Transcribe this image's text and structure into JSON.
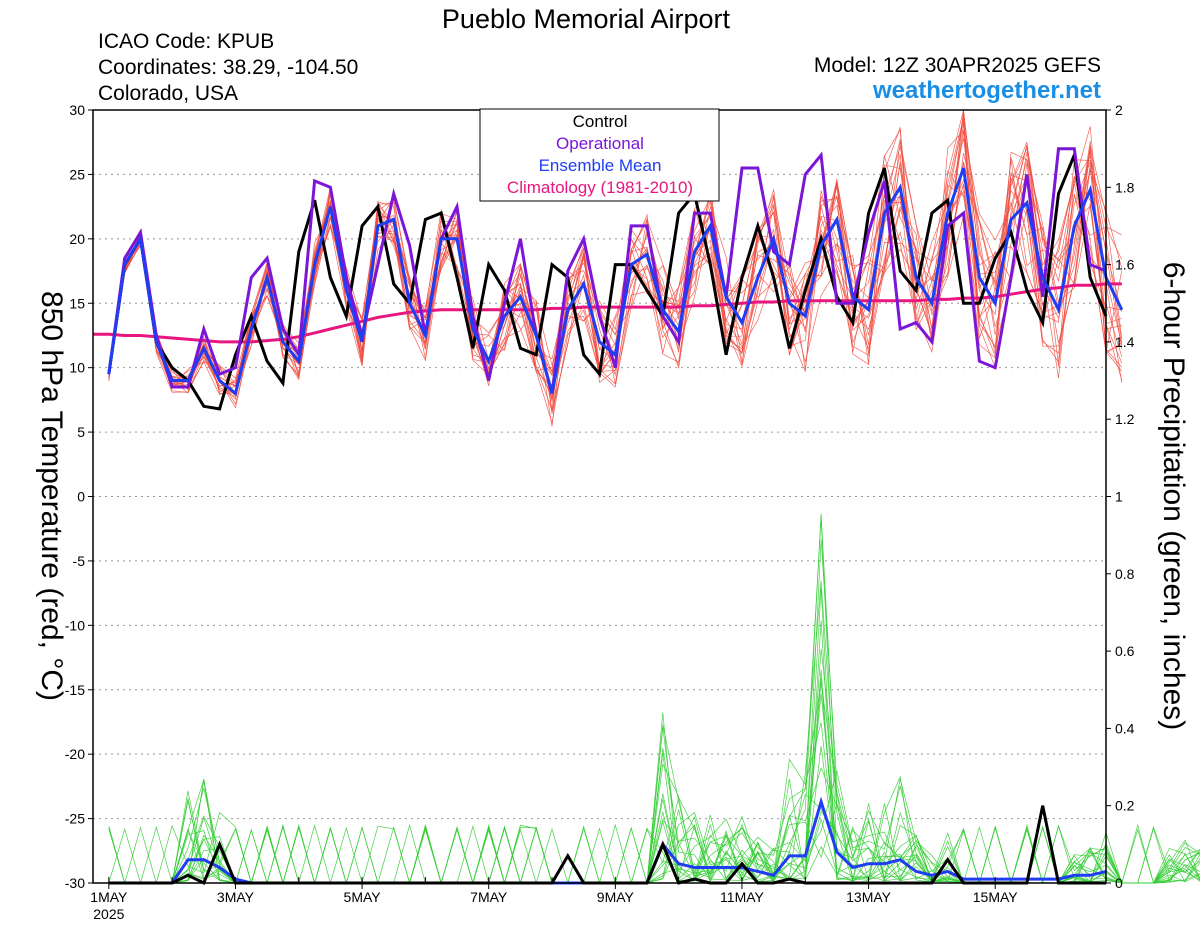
{
  "header": {
    "title": "Pueblo Memorial Airport",
    "icao": "ICAO Code: KPUB",
    "coords": "Coordinates: 38.29, -104.50",
    "region": "Colorado, USA",
    "model": "Model: 12Z 30APR2025 GEFS",
    "site": "weathertogether.net"
  },
  "colors": {
    "control": "#000000",
    "operational": "#7b16d9",
    "ensemble_mean": "#1f3df2",
    "climatology": "#e8177f",
    "members_temp": "#f04b40",
    "members_precip": "#33cc33",
    "site": "#1a8ee6"
  },
  "chart_data": {
    "type": "line",
    "title": "Pueblo Memorial Airport",
    "ylabel": "850 hPa Temperature (red, °C)",
    "y2label": "6-hour Precipitation (green, inches)",
    "ylim": [
      -30,
      30
    ],
    "y2lim": [
      0,
      2
    ],
    "yticks": [
      30,
      25,
      20,
      15,
      10,
      5,
      0,
      -5,
      -10,
      -15,
      -20,
      -25,
      -30
    ],
    "y2ticks": [
      "2",
      "1.8",
      "1.6",
      "1.4",
      "1.2",
      "1",
      "0.8",
      "0.6",
      "0.4",
      "0.2",
      "0"
    ],
    "xaxis": {
      "unit": "hours after 00Z 1 May 2025",
      "range": [
        -6,
        378
      ],
      "step": 6,
      "ticks": [
        {
          "x": 0,
          "label": "1MAY",
          "sub": "2025"
        },
        {
          "x": 48,
          "label": "3MAY"
        },
        {
          "x": 96,
          "label": "5MAY"
        },
        {
          "x": 144,
          "label": "7MAY"
        },
        {
          "x": 192,
          "label": "9MAY"
        },
        {
          "x": 240,
          "label": "11MAY"
        },
        {
          "x": 288,
          "label": "13MAY"
        },
        {
          "x": 336,
          "label": "15MAY"
        }
      ]
    },
    "legend": {
      "position": "top-center",
      "entries": [
        {
          "label": "Control",
          "key": "control"
        },
        {
          "label": "Operational",
          "key": "operational"
        },
        {
          "label": "Ensemble Mean",
          "key": "ensemble_mean"
        },
        {
          "label": "Climatology (1981-2010)",
          "key": "climatology"
        }
      ]
    },
    "temperature_series": {
      "control": [
        9.5,
        18,
        20,
        12,
        10,
        9,
        7,
        6.8,
        11,
        14,
        10.5,
        8.8,
        19,
        23,
        17,
        14,
        21,
        22.5,
        16.5,
        15,
        21.5,
        22,
        17,
        11.5,
        18,
        16,
        11.5,
        11,
        18,
        17,
        11,
        9.5,
        18,
        18,
        16,
        14,
        22,
        23.5,
        18,
        11,
        17,
        21,
        17,
        11.5,
        16,
        20,
        15.5,
        13.5,
        22,
        25.5,
        17.5,
        16,
        22,
        23,
        15,
        15,
        18.5,
        20.5,
        16,
        13.5,
        23.5,
        26.5,
        17,
        14
      ],
      "operational": [
        9.5,
        18.5,
        20.5,
        12.5,
        8.5,
        8.5,
        13,
        9.5,
        10,
        17,
        18.5,
        13,
        11,
        24.5,
        24,
        17,
        12.5,
        18,
        23.5,
        19.5,
        12.5,
        20,
        22.5,
        14,
        9,
        15,
        20,
        12.5,
        8,
        17.5,
        20,
        14,
        10,
        21,
        21,
        14,
        12,
        22,
        22,
        15.5,
        25.5,
        25.5,
        19,
        18,
        25,
        26.5,
        15,
        15,
        20.5,
        24.5,
        13,
        13.5,
        12,
        21,
        22,
        10.5,
        10,
        17,
        25,
        15.5,
        27,
        27,
        18,
        17.5
      ],
      "ensemble_mean": [
        9.5,
        18,
        20,
        12,
        9,
        9,
        11.5,
        9,
        8,
        13,
        17,
        12,
        10.5,
        18,
        22.5,
        16,
        12,
        21,
        21.5,
        15,
        12.5,
        20,
        20,
        13,
        10.5,
        14,
        15.5,
        12.5,
        8,
        14.5,
        16.5,
        12,
        11,
        18,
        18.8,
        14.5,
        12.8,
        19,
        21,
        15.5,
        13.5,
        17,
        20,
        15,
        14,
        19.5,
        21.5,
        15.5,
        14.5,
        22,
        24,
        17,
        15,
        22,
        25.5,
        17,
        15,
        21.5,
        22.8,
        17,
        14.5,
        21,
        23.8,
        17,
        14.5
      ],
      "climatology": [
        12.6,
        12.6,
        12.5,
        12.5,
        12.4,
        12.3,
        12.2,
        12.1,
        12.0,
        12.0,
        12.0,
        12.1,
        12.2,
        12.4,
        12.7,
        13.0,
        13.3,
        13.6,
        13.9,
        14.1,
        14.3,
        14.4,
        14.5,
        14.5,
        14.5,
        14.5,
        14.5,
        14.5,
        14.5,
        14.6,
        14.6,
        14.7,
        14.7,
        14.7,
        14.7,
        14.7,
        14.7,
        14.7,
        14.8,
        14.8,
        14.9,
        15.0,
        15.1,
        15.1,
        15.2,
        15.2,
        15.2,
        15.2,
        15.2,
        15.2,
        15.2,
        15.2,
        15.2,
        15.3,
        15.3,
        15.4,
        15.4,
        15.5,
        15.7,
        15.9,
        16.1,
        16.2,
        16.4,
        16.4,
        16.5,
        16.5
      ]
    },
    "precip_series": {
      "control": [
        0,
        0,
        0,
        0,
        0,
        0.02,
        0,
        0.1,
        0,
        0,
        0,
        0,
        0,
        0,
        0,
        0,
        0,
        0,
        0,
        0,
        0,
        0,
        0,
        0,
        0,
        0,
        0,
        0,
        0,
        0.07,
        0,
        0,
        0,
        0,
        0,
        0.1,
        0,
        0.01,
        0,
        0,
        0.05,
        0,
        0,
        0.01,
        0,
        0,
        0,
        0,
        0,
        0,
        0,
        0,
        0,
        0.06,
        0,
        0,
        0,
        0,
        0,
        0.2,
        0,
        0,
        0,
        0,
        0,
        0,
        0,
        0.04,
        0,
        0.01,
        0,
        0,
        0,
        0,
        0,
        0.12,
        0.05,
        0.02,
        0.02,
        0.01,
        0,
        0,
        0,
        0,
        0,
        0,
        0,
        0,
        0,
        0,
        0,
        0.15,
        0.02,
        0,
        0,
        0,
        0,
        0,
        0,
        0,
        0,
        0,
        0,
        0,
        0,
        0,
        0.03,
        0,
        0,
        0,
        0,
        0,
        0,
        0,
        0,
        0.1,
        0.05,
        0.03,
        0.02,
        0.02,
        0.02,
        0.03,
        0.05,
        0,
        0,
        0
      ],
      "ensemble_mean": [
        0,
        0,
        0,
        0,
        0,
        0.06,
        0.06,
        0.04,
        0.01,
        0,
        0,
        0,
        0,
        0,
        0,
        0,
        0,
        0,
        0,
        0,
        0,
        0,
        0,
        0,
        0,
        0,
        0,
        0,
        0,
        0,
        0,
        0,
        0,
        0,
        0,
        0.1,
        0.05,
        0.04,
        0.04,
        0.04,
        0.04,
        0.03,
        0.02,
        0.07,
        0.07,
        0.21,
        0.08,
        0.04,
        0.05,
        0.05,
        0.06,
        0.03,
        0.02,
        0.03,
        0.01,
        0.01,
        0.01,
        0.01,
        0.01,
        0.01,
        0.01,
        0.02,
        0.02,
        0.03,
        0.01,
        0.01,
        0.01,
        0.02,
        0.03,
        0.02,
        0.01,
        0.01,
        0.01,
        0.01,
        0.02,
        0.02,
        0.01,
        0.01,
        0,
        0,
        0,
        0,
        0,
        0.02,
        0.02,
        0.01,
        0,
        0,
        0.01,
        0.02,
        0.03,
        0.08,
        0.03,
        0.02,
        0.01,
        0.01,
        0,
        0,
        0.01,
        0.02,
        0.01,
        0.01,
        0.01,
        0.01,
        0.01,
        0.02,
        0.02,
        0.02,
        0.02,
        0.02,
        0.02,
        0.01,
        0,
        0,
        0,
        0,
        0.02,
        0.01,
        0.01,
        0.02,
        0.02,
        0.02,
        0.01,
        0.01,
        0.01,
        0.02,
        0.02,
        0.02,
        0.01,
        0.01,
        0.01,
        0.02,
        0.01,
        0.01,
        0.01,
        0.01,
        0.01,
        0.02,
        0.03,
        0.02,
        0.01,
        0.01,
        0.01,
        0.02,
        0.02,
        0.02,
        0.02,
        0.02,
        0.02,
        0.02,
        0.02,
        0.02,
        0.02,
        0.02,
        0.02,
        0.02,
        0.02,
        0.02,
        0.02,
        0.02,
        0.02,
        0.02,
        0.02,
        0.02,
        0.02,
        0.02,
        0.02,
        0.02,
        0.02,
        0.02,
        0.02,
        0.02,
        0.02,
        0.02,
        0.02,
        0.02,
        0.02,
        0.02,
        0.02,
        0.02,
        0.02,
        0.02,
        0.02,
        0.02,
        0.02,
        0.02,
        0.02,
        0.02,
        0.02,
        0.02
      ]
    }
  }
}
